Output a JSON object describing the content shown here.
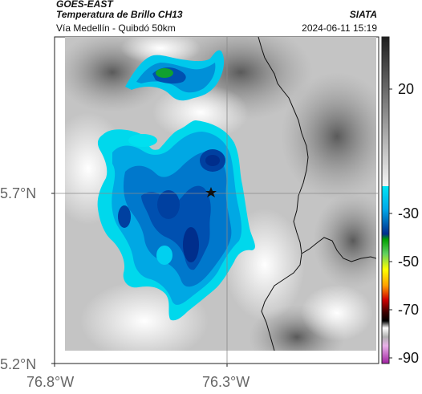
{
  "header": {
    "satellite": "GOES-EAST",
    "product": "Temperatura de Brillo CH13",
    "route": "Vía Medellín - Quibdó 50km",
    "credit": "SIATA",
    "timestamp": "2024-06-11 15:19"
  },
  "map": {
    "lat_ticks": [
      "5.7°N",
      "5.2°N"
    ],
    "lon_ticks": [
      "76.8°W",
      "76.3°W"
    ],
    "marker": "star-icon"
  },
  "colorbar": {
    "labels": [
      "20",
      "-30",
      "-50",
      "-70",
      "-90"
    ],
    "colors": {
      "gray_top": "#1e1e1e",
      "gray_bottom": "#f5f5f5",
      "blue_top": "#00e5f5",
      "blue_bottom": "#002e8c",
      "green": "#00b000",
      "yellow": "#ffff00",
      "red": "#d00000",
      "black": "#000000",
      "magenta": "#c040c0"
    }
  }
}
